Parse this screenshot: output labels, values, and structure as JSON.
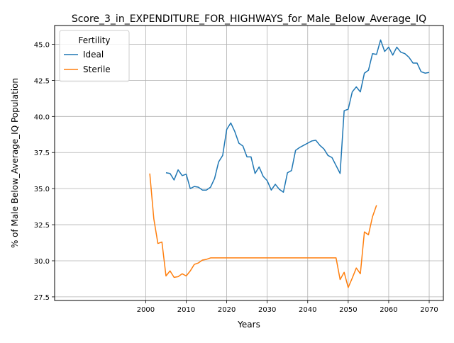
{
  "chart_data": {
    "type": "line",
    "title": "Score_3_in_EXPENDITURE_FOR_HIGHWAYS_for_Male_Below_Average_IQ",
    "xlabel": "Years",
    "ylabel": "% of Male Below_Average_IQ Population",
    "xlim": [
      1977.5,
      2073.5
    ],
    "ylim": [
      27.25,
      46.3
    ],
    "xticks": [
      2000,
      2010,
      2020,
      2030,
      2040,
      2050,
      2060,
      2070
    ],
    "xtick_labels": [
      "2000",
      "2010",
      "2020",
      "2030",
      "2040",
      "2050",
      "2060",
      "2070"
    ],
    "yticks": [
      27.5,
      30.0,
      32.5,
      35.0,
      37.5,
      40.0,
      42.5,
      45.0
    ],
    "ytick_labels": [
      "27.5",
      "30.0",
      "32.5",
      "35.0",
      "37.5",
      "40.0",
      "42.5",
      "45.0"
    ],
    "grid": true,
    "legend": {
      "title": "Fertility",
      "placement": "upper-left"
    },
    "series": [
      {
        "name": "Ideal",
        "color": "#1f77b4",
        "x": [
          2005,
          2006,
          2007,
          2008,
          2009,
          2010,
          2011,
          2012,
          2013,
          2014,
          2015,
          2016,
          2017,
          2018,
          2019,
          2020,
          2021,
          2022,
          2023,
          2024,
          2025,
          2026,
          2027,
          2028,
          2029,
          2030,
          2031,
          2032,
          2033,
          2034,
          2035,
          2036,
          2037,
          2038,
          2039,
          2040,
          2041,
          2042,
          2043,
          2044,
          2045,
          2046,
          2047,
          2048,
          2049,
          2050,
          2051,
          2052,
          2053,
          2054,
          2055,
          2056,
          2057,
          2058,
          2059,
          2060,
          2061,
          2062,
          2063,
          2064,
          2065,
          2066,
          2067,
          2068,
          2069,
          2070
        ],
        "y": [
          36.1,
          36.05,
          35.6,
          36.3,
          35.9,
          36.0,
          35.0,
          35.15,
          35.1,
          34.9,
          34.9,
          35.1,
          35.7,
          36.85,
          37.3,
          39.1,
          39.55,
          38.95,
          38.15,
          37.95,
          37.2,
          37.2,
          36.05,
          36.5,
          35.85,
          35.55,
          34.9,
          35.3,
          34.95,
          34.75,
          36.1,
          36.25,
          37.65,
          37.85,
          38.0,
          38.15,
          38.3,
          38.35,
          38.0,
          37.75,
          37.3,
          37.15,
          36.6,
          36.05,
          40.4,
          40.5,
          41.7,
          42.05,
          41.7,
          43.0,
          43.2,
          44.35,
          44.3,
          45.3,
          44.5,
          44.8,
          44.25,
          44.8,
          44.45,
          44.35,
          44.1,
          43.7,
          43.7,
          43.1,
          43.0,
          43.05
        ]
      },
      {
        "name": "Sterile",
        "color": "#ff7f0e",
        "x": [
          2001,
          2002,
          2003,
          2004,
          2005,
          2006,
          2007,
          2008,
          2009,
          2010,
          2011,
          2012,
          2013,
          2014,
          2015,
          2016,
          2017,
          2018,
          2019,
          2020,
          2021,
          2022,
          2023,
          2024,
          2025,
          2026,
          2027,
          2028,
          2029,
          2030,
          2031,
          2032,
          2033,
          2034,
          2035,
          2036,
          2037,
          2038,
          2039,
          2040,
          2041,
          2042,
          2043,
          2044,
          2045,
          2046,
          2047,
          2048,
          2049,
          2050,
          2051,
          2052,
          2053,
          2054,
          2055,
          2056,
          2057
        ],
        "y": [
          36.05,
          32.9,
          31.2,
          31.3,
          28.95,
          29.3,
          28.85,
          28.9,
          29.1,
          28.95,
          29.3,
          29.75,
          29.85,
          30.05,
          30.1,
          30.2,
          30.2,
          30.2,
          30.2,
          30.2,
          30.2,
          30.2,
          30.2,
          30.2,
          30.2,
          30.2,
          30.2,
          30.2,
          30.2,
          30.2,
          30.2,
          30.2,
          30.2,
          30.2,
          30.2,
          30.2,
          30.2,
          30.2,
          30.2,
          30.2,
          30.2,
          30.2,
          30.2,
          30.2,
          30.2,
          30.2,
          30.2,
          28.7,
          29.2,
          28.15,
          28.8,
          29.5,
          29.1,
          32.0,
          31.8,
          33.05,
          33.85
        ]
      }
    ]
  }
}
